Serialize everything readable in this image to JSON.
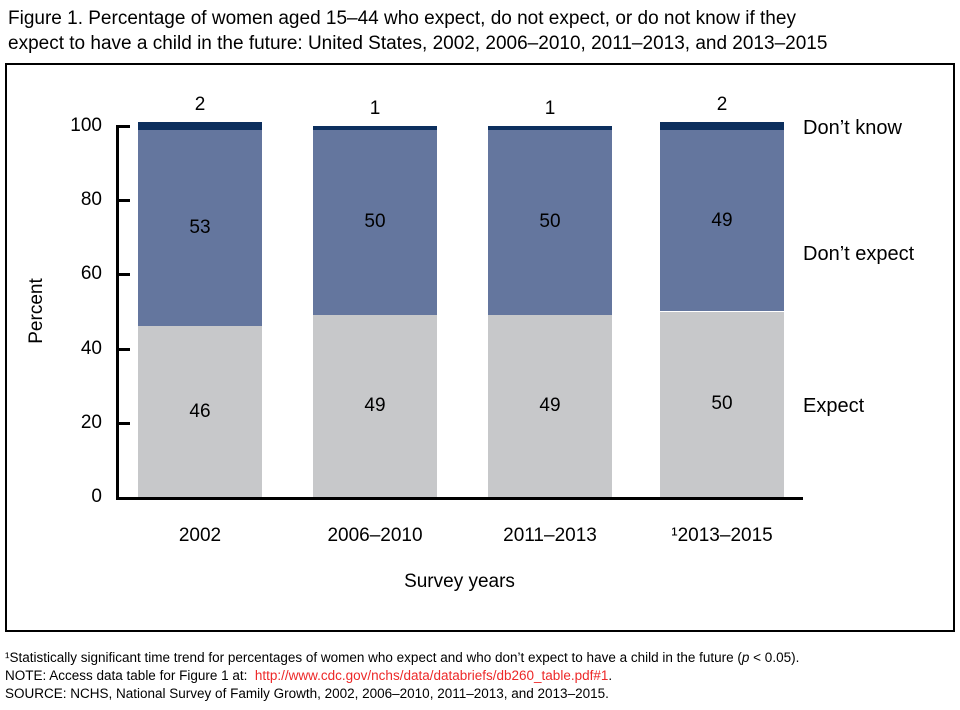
{
  "title": {
    "lines": [
      "Figure 1. Percentage of women aged 15–44 who expect, do not expect, or do not know if they",
      "expect to have a child in the future: United States, 2002, 2006–2010, 2011–2013, and 2013–2015"
    ]
  },
  "chart_data": {
    "type": "bar",
    "stacked": true,
    "title": "Figure 1. Percentage of women aged 15–44 who expect, do not expect, or do not know if they expect to have a child in the future: United States, 2002, 2006–2010, 2011–2013, and 2013–2015",
    "categories": [
      "2002",
      "2006–2010",
      "2011–2013",
      "¹2013–2015"
    ],
    "series": [
      {
        "name": "Expect",
        "color": "#c7c8ca",
        "values": [
          46,
          49,
          49,
          50
        ]
      },
      {
        "name": "Don’t expect",
        "color": "#64769e",
        "values": [
          53,
          50,
          50,
          49
        ]
      },
      {
        "name": "Don’t know",
        "color": "#0d2f5e",
        "values": [
          2,
          1,
          1,
          2
        ]
      }
    ],
    "xlabel": "Survey years",
    "ylabel": "Percent",
    "ylim": [
      0,
      100
    ],
    "yticks": [
      0,
      20,
      40,
      60,
      80,
      100
    ],
    "grid": false,
    "legend_position": "right",
    "colors": {
      "expect": "#c7c8ca",
      "dont_expect": "#64769e",
      "dont_know": "#0d2f5e"
    }
  },
  "footnotes": {
    "fn1_pre": "¹Statistically significant time trend for percentages of women who expect and who don’t expect to have a child in the future (",
    "fn1_italic": "p",
    "fn1_post": " < 0.05).",
    "note_prefix": "NOTE: Access data table for Figure 1 at:  ",
    "note_link": "http://www.cdc.gov/nchs/data/databriefs/db260_table.pdf#1",
    "note_suffix": ".",
    "source": "SOURCE: NCHS, National Survey of Family Growth, 2002, 2006–2010, 2011–2013, and 2013–2015.",
    "link_color": "#ed2828"
  }
}
